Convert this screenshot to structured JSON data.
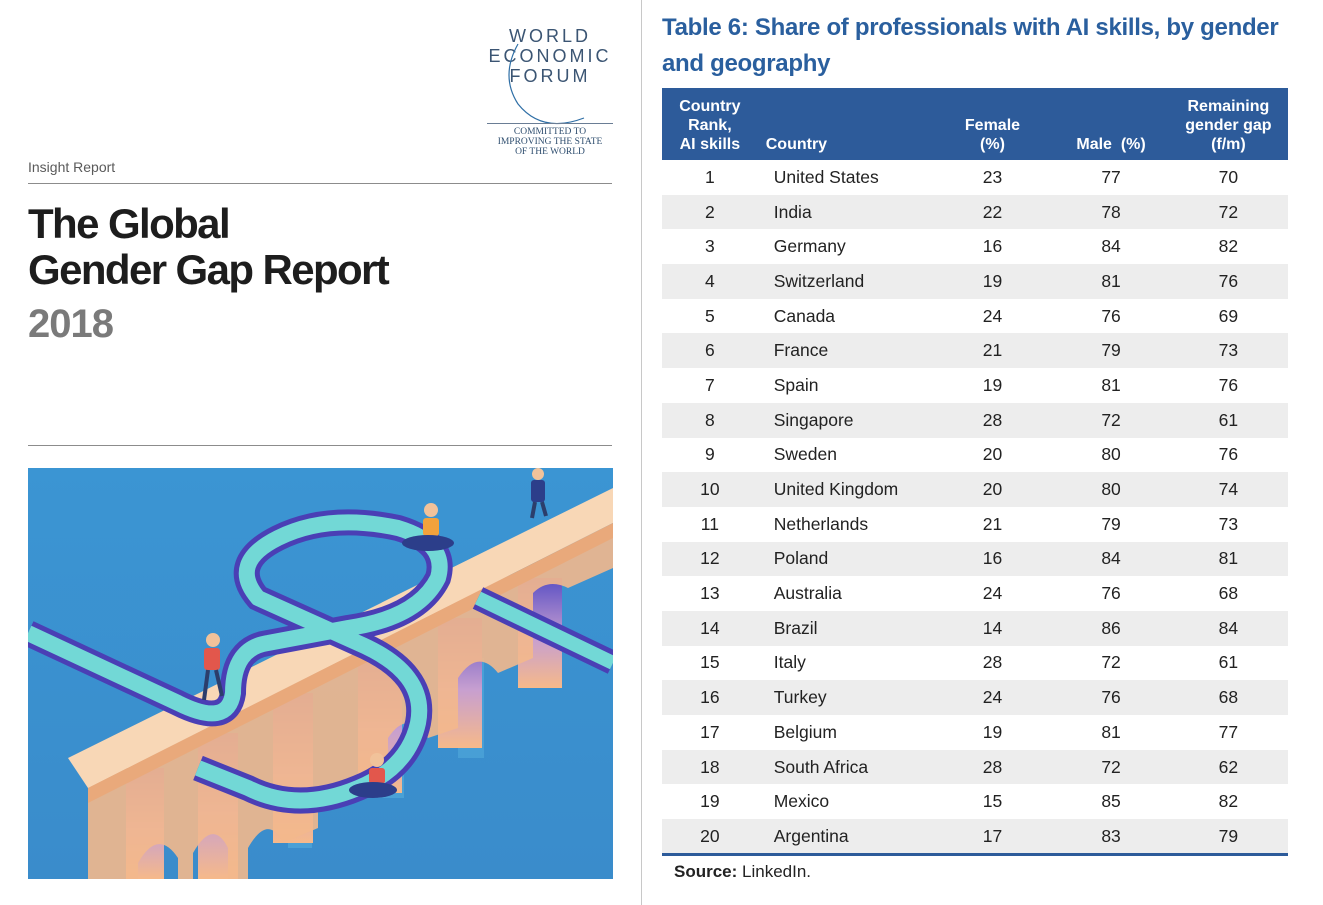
{
  "cover": {
    "logo_lines": [
      "WORLD",
      "ECONOMIC",
      "FORUM"
    ],
    "tagline_lines": [
      "COMMITTED TO",
      "IMPROVING THE STATE",
      "OF THE WORLD"
    ],
    "insight_label": "Insight Report",
    "title_lines": [
      "The Global",
      "Gender Gap Report"
    ],
    "year": "2018"
  },
  "table": {
    "title": "Table 6: Share of professionals with AI skills, by gender and geography",
    "headers": {
      "rank": [
        "Country",
        "Rank,",
        "AI skills"
      ],
      "country": "Country",
      "female": [
        "Female",
        "(%)"
      ],
      "male": "Male  (%)",
      "gap": [
        "Remaining",
        "gender gap",
        "(f/m)"
      ]
    },
    "rows": [
      {
        "rank": "1",
        "country": "United States",
        "female": "23",
        "male": "77",
        "gap": "70"
      },
      {
        "rank": "2",
        "country": "India",
        "female": "22",
        "male": "78",
        "gap": "72"
      },
      {
        "rank": "3",
        "country": "Germany",
        "female": "16",
        "male": "84",
        "gap": "82"
      },
      {
        "rank": "4",
        "country": "Switzerland",
        "female": "19",
        "male": "81",
        "gap": "76"
      },
      {
        "rank": "5",
        "country": "Canada",
        "female": "24",
        "male": "76",
        "gap": "69"
      },
      {
        "rank": "6",
        "country": "France",
        "female": "21",
        "male": "79",
        "gap": "73"
      },
      {
        "rank": "7",
        "country": "Spain",
        "female": "19",
        "male": "81",
        "gap": "76"
      },
      {
        "rank": "8",
        "country": "Singapore",
        "female": "28",
        "male": "72",
        "gap": "61"
      },
      {
        "rank": "9",
        "country": "Sweden",
        "female": "20",
        "male": "80",
        "gap": "76"
      },
      {
        "rank": "10",
        "country": "United Kingdom",
        "female": "20",
        "male": "80",
        "gap": "74"
      },
      {
        "rank": "11",
        "country": "Netherlands",
        "female": "21",
        "male": "79",
        "gap": "73"
      },
      {
        "rank": "12",
        "country": "Poland",
        "female": "16",
        "male": "84",
        "gap": "81"
      },
      {
        "rank": "13",
        "country": "Australia",
        "female": "24",
        "male": "76",
        "gap": "68"
      },
      {
        "rank": "14",
        "country": "Brazil",
        "female": "14",
        "male": "86",
        "gap": "84"
      },
      {
        "rank": "15",
        "country": "Italy",
        "female": "28",
        "male": "72",
        "gap": "61"
      },
      {
        "rank": "16",
        "country": "Turkey",
        "female": "24",
        "male": "76",
        "gap": "68"
      },
      {
        "rank": "17",
        "country": "Belgium",
        "female": "19",
        "male": "81",
        "gap": "77"
      },
      {
        "rank": "18",
        "country": "South Africa",
        "female": "28",
        "male": "72",
        "gap": "62"
      },
      {
        "rank": "19",
        "country": "Mexico",
        "female": "15",
        "male": "85",
        "gap": "82"
      },
      {
        "rank": "20",
        "country": "Argentina",
        "female": "17",
        "male": "83",
        "gap": "79"
      }
    ],
    "source_label": "Source:",
    "source_text": "LinkedIn."
  },
  "colors": {
    "header_blue": "#2d5b9a",
    "title_blue": "#2a5f9e",
    "row_stripe": "#ededed",
    "water_blue": "#3f8fce",
    "bridge_peach": "#f6c9a0",
    "track_teal": "#6fd6d6",
    "track_purple": "#5a4fc4"
  }
}
